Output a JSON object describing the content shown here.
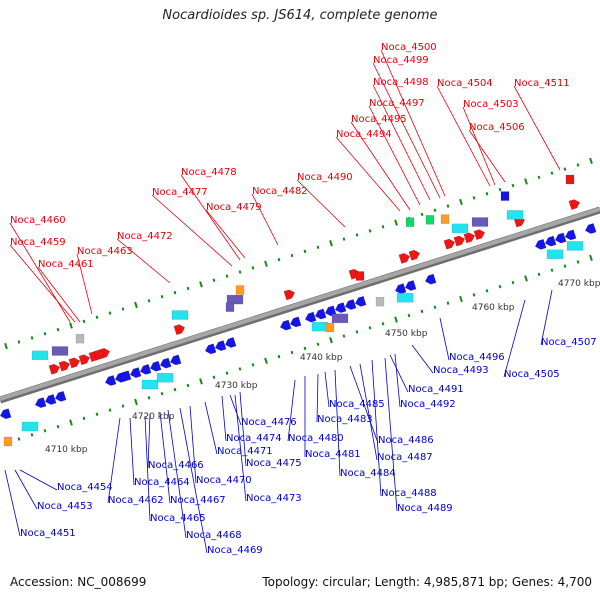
{
  "title": "Nocardioides sp. JS614, complete genome",
  "footer": {
    "accession": "Accession: NC_008699",
    "topology": "Topology: circular; Length: 4,985,871 bp; Genes: 4,700"
  },
  "colors": {
    "upper_label": "#e8000b",
    "lower_label": "#0000cc",
    "backbone": "#8a8a8a",
    "tick": "#138a13",
    "gene_blue": "#1515e6",
    "gene_red": "#ee1515",
    "gene_cyan": "#21e4ee",
    "gene_purple": "#6a59b8",
    "gene_orange": "#ff9b22",
    "gene_green": "#12d86a",
    "gene_grey": "#b9b9b9"
  },
  "scale_labels": [
    "4710 kbp",
    "4720 kbp",
    "4730 kbp",
    "4740 kbp",
    "4750 kbp",
    "4760 kbp",
    "4770 kbp"
  ],
  "upper_labels": [
    "Noca_4460",
    "Noca_4459",
    "Noca_4461",
    "Noca_4463",
    "Noca_4472",
    "Noca_4477",
    "Noca_4478",
    "Noca_4479",
    "Noca_4482",
    "Noca_4490",
    "Noca_4494",
    "Noca_4495",
    "Noca_4497",
    "Noca_4498",
    "Noca_4499",
    "Noca_4500",
    "Noca_4504",
    "Noca_4503",
    "Noca_4506",
    "Noca_4511"
  ],
  "lower_labels": [
    "Noca_4451",
    "Noca_4453",
    "Noca_4454",
    "Noca_4462",
    "Noca_4464",
    "Noca_4465",
    "Noca_4466",
    "Noca_4467",
    "Noca_4468",
    "Noca_4469",
    "Noca_4470",
    "Noca_4471",
    "Noca_4473",
    "Noca_4474",
    "Noca_4475",
    "Noca_4476",
    "Noca_4480",
    "Noca_4481",
    "Noca_4483",
    "Noca_4484",
    "Noca_4485",
    "Noca_4486",
    "Noca_4487",
    "Noca_4488",
    "Noca_4489",
    "Noca_4491",
    "Noca_4492",
    "Noca_4493",
    "Noca_4496",
    "Noca_4505",
    "Noca_4507"
  ]
}
